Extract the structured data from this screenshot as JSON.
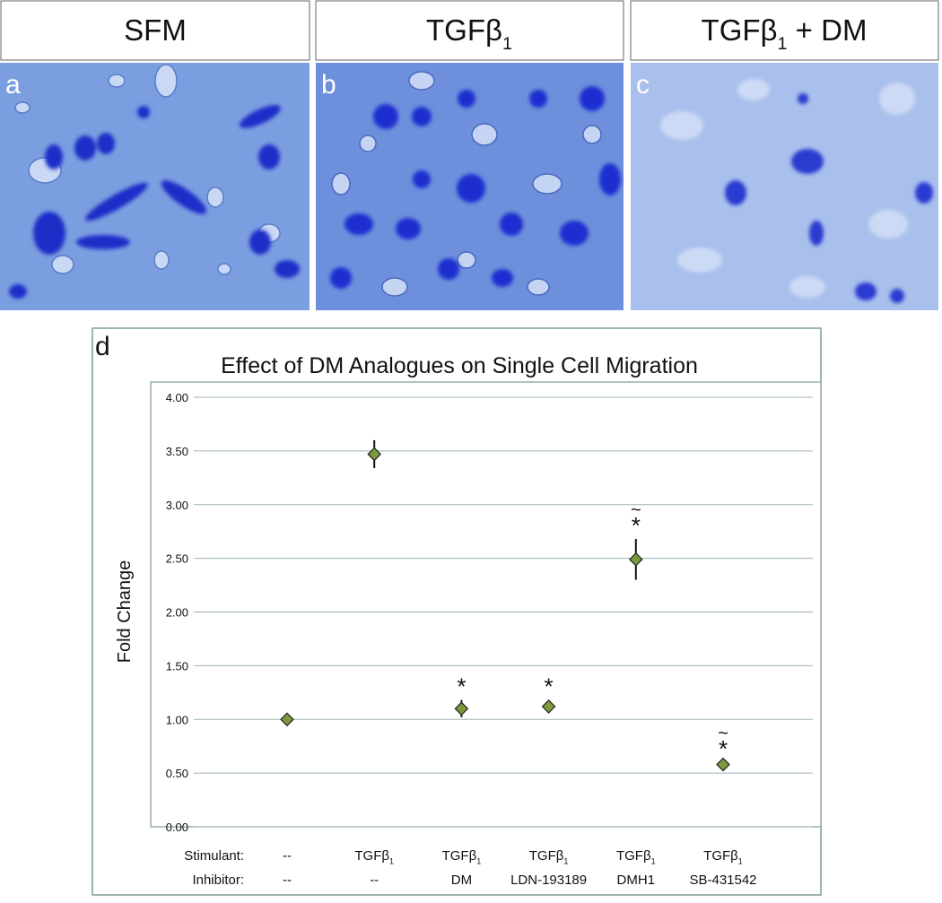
{
  "panels": [
    {
      "letter": "a",
      "header": {
        "text": "SFM"
      }
    },
    {
      "letter": "b",
      "header": {
        "text": "TGFβ",
        "sub": "1"
      }
    },
    {
      "letter": "c",
      "header": {
        "text": "TGFβ",
        "sub": "1",
        "suffix": " + DM"
      }
    }
  ],
  "chart_letter": "d",
  "chart_data": {
    "type": "scatter",
    "title": "Effect of DM Analogues on Single Cell Migration",
    "y_label": "Fold Change",
    "row_labels": [
      "Stimulant:",
      "Inhibitor:"
    ],
    "stimulant": [
      {
        "text": "--"
      },
      {
        "text": "TGFβ",
        "sub": "1"
      },
      {
        "text": "TGFβ",
        "sub": "1"
      },
      {
        "text": "TGFβ",
        "sub": "1"
      },
      {
        "text": "TGFβ",
        "sub": "1"
      },
      {
        "text": "TGFβ",
        "sub": "1"
      }
    ],
    "inhibitor": [
      {
        "text": "--"
      },
      {
        "text": "--"
      },
      {
        "text": "DM"
      },
      {
        "text": "LDN-193189"
      },
      {
        "text": "DMH1"
      },
      {
        "text": "SB-431542"
      }
    ],
    "values": [
      1.0,
      3.47,
      1.1,
      1.12,
      2.49,
      0.58
    ],
    "errors": [
      0.03,
      0.13,
      0.08,
      0.06,
      0.19,
      0.02
    ],
    "significance_star": [
      null,
      null,
      "*",
      "*",
      "*",
      "*"
    ],
    "significance_tilde": [
      null,
      null,
      null,
      null,
      "~",
      "~"
    ],
    "color": "#7a9a3c",
    "ylim": [
      0,
      4
    ],
    "yticks": [
      {
        "value": 0,
        "label": "0.00"
      },
      {
        "value": 0.5,
        "label": "0.50"
      },
      {
        "value": 1,
        "label": "1.00"
      },
      {
        "value": 1.5,
        "label": "1.50"
      },
      {
        "value": 2,
        "label": "2.00"
      },
      {
        "value": 2.5,
        "label": "2.50"
      },
      {
        "value": 3,
        "label": "3.00"
      },
      {
        "value": 3.5,
        "label": "3.50"
      },
      {
        "value": 4,
        "label": "4.00"
      }
    ],
    "grid": true
  }
}
